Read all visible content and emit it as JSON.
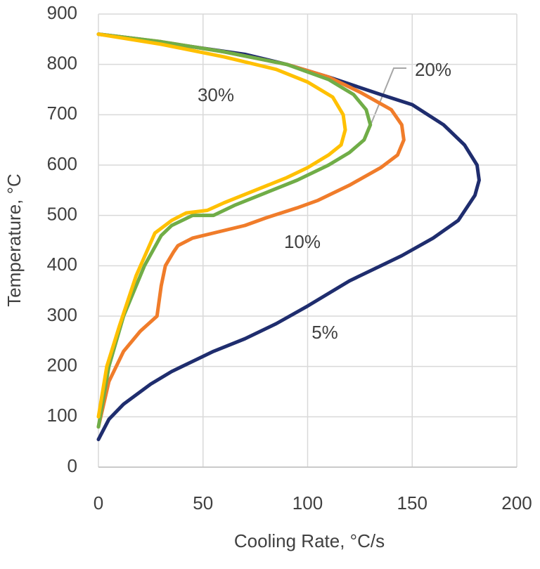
{
  "chart_data": {
    "type": "line",
    "x_label": "Cooling Rate, °C/s",
    "y_label": "Temperature, °C",
    "xlim": [
      0,
      200
    ],
    "xticks": [
      0,
      50,
      100,
      150,
      200
    ],
    "ylim": [
      0,
      900
    ],
    "yticks": [
      0,
      100,
      200,
      300,
      400,
      500,
      600,
      700,
      800,
      900
    ],
    "grid": true,
    "series": [
      {
        "name": "5%",
        "color": "#1f2d6e",
        "x": [
          0,
          20,
          50,
          70,
          90,
          110,
          135,
          150,
          165,
          175,
          181,
          182,
          180,
          172,
          160,
          145,
          120,
          100,
          85,
          70,
          55,
          45,
          35,
          25,
          12,
          5,
          0
        ],
        "values": [
          860,
          850,
          832,
          820,
          800,
          775,
          740,
          720,
          680,
          640,
          600,
          570,
          540,
          490,
          455,
          420,
          370,
          320,
          285,
          255,
          230,
          210,
          190,
          165,
          125,
          95,
          55
        ]
      },
      {
        "name": "10%",
        "color": "#f07c2a",
        "x": [
          0,
          30,
          60,
          90,
          110,
          125,
          140,
          145,
          146,
          143,
          135,
          120,
          105,
          95,
          80,
          70,
          55,
          45,
          38,
          36,
          32,
          30,
          28,
          20,
          12,
          5,
          0
        ],
        "values": [
          860,
          845,
          825,
          800,
          775,
          745,
          710,
          680,
          650,
          620,
          595,
          560,
          530,
          515,
          495,
          480,
          465,
          455,
          440,
          428,
          400,
          360,
          300,
          270,
          230,
          170,
          80
        ]
      },
      {
        "name": "20%",
        "color": "#70ad47",
        "x": [
          0,
          30,
          60,
          90,
          110,
          122,
          128,
          130,
          127,
          120,
          110,
          95,
          80,
          65,
          55,
          45,
          35,
          30,
          22,
          12,
          5,
          0
        ],
        "values": [
          860,
          845,
          825,
          800,
          770,
          740,
          710,
          680,
          650,
          625,
          600,
          570,
          545,
          520,
          500,
          500,
          480,
          460,
          400,
          300,
          200,
          80
        ]
      },
      {
        "name": "30%",
        "color": "#ffc000",
        "x": [
          0,
          30,
          60,
          85,
          100,
          112,
          117,
          118,
          116,
          110,
          100,
          90,
          75,
          60,
          52,
          42,
          35,
          27,
          18,
          10,
          4,
          0
        ],
        "values": [
          860,
          840,
          815,
          790,
          765,
          735,
          700,
          670,
          640,
          620,
          595,
          575,
          550,
          525,
          510,
          505,
          490,
          465,
          380,
          280,
          200,
          100
        ]
      }
    ]
  }
}
